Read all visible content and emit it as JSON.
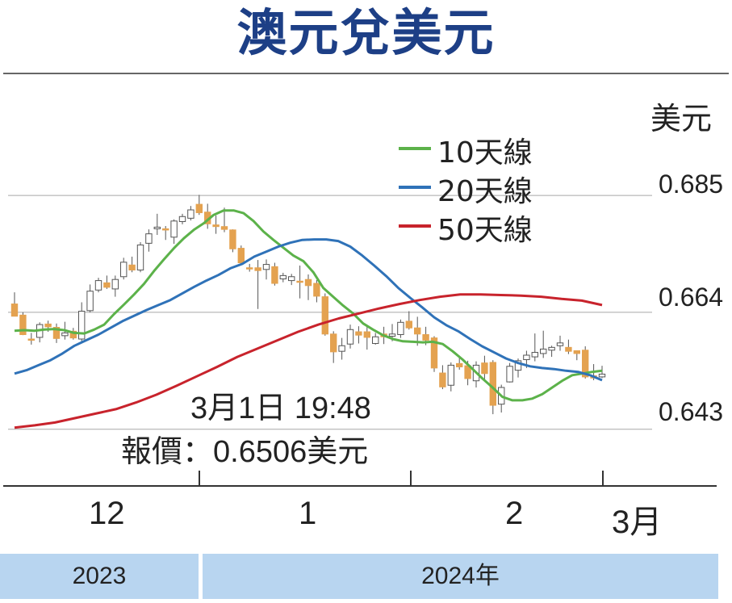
{
  "title": "澳元兌美元",
  "chart_data": {
    "type": "candlestick",
    "y_unit": "美元",
    "ylim": [
      0.636,
      0.694
    ],
    "y_ticks": [
      {
        "value": 0.685,
        "label": "0.685"
      },
      {
        "value": 0.664,
        "label": "0.664"
      },
      {
        "value": 0.643,
        "label": "0.643"
      }
    ],
    "x_labels": [
      "12",
      "1",
      "2",
      "3月"
    ],
    "year_labels": [
      "2023",
      "2024年"
    ],
    "annotation": {
      "time": "3月1日  19:48",
      "price": "報價：0.6506美元"
    },
    "colors": {
      "up": "#ffffff",
      "down": "#e4a250",
      "ma10": "#5cb24a",
      "ma20": "#2f72b8",
      "ma50": "#c8232c"
    },
    "series": [
      {
        "name": "10天線",
        "color": "#5cb24a",
        "values": [
          0.6607,
          0.6608,
          0.6607,
          0.6609,
          0.661,
          0.6608,
          0.6603,
          0.6602,
          0.6609,
          0.6618,
          0.6637,
          0.6654,
          0.6672,
          0.6691,
          0.6714,
          0.6735,
          0.6755,
          0.6773,
          0.6788,
          0.68,
          0.6815,
          0.6823,
          0.6823,
          0.6818,
          0.6804,
          0.6785,
          0.677,
          0.6756,
          0.6742,
          0.6732,
          0.6712,
          0.6684,
          0.6668,
          0.6652,
          0.6638,
          0.662,
          0.6609,
          0.6599,
          0.6592,
          0.6588,
          0.6587,
          0.6586,
          0.6587,
          0.6583,
          0.657,
          0.6555,
          0.6538,
          0.6521,
          0.6505,
          0.6488,
          0.6482,
          0.6482,
          0.6485,
          0.6493,
          0.6505,
          0.6517,
          0.6527,
          0.653,
          0.6533,
          0.6535
        ]
      },
      {
        "name": "20天線",
        "color": "#2f72b8",
        "values": [
          0.653,
          0.6536,
          0.6545,
          0.6554,
          0.6566,
          0.658,
          0.659,
          0.66,
          0.6612,
          0.6624,
          0.6634,
          0.6644,
          0.6653,
          0.6662,
          0.6674,
          0.6686,
          0.6697,
          0.6707,
          0.6719,
          0.6727,
          0.674,
          0.6749,
          0.6758,
          0.6765,
          0.677,
          0.6771,
          0.6771,
          0.6768,
          0.6758,
          0.6742,
          0.6724,
          0.6705,
          0.6684,
          0.6666,
          0.6649,
          0.6631,
          0.6617,
          0.6606,
          0.6592,
          0.6579,
          0.6568,
          0.6557,
          0.6549,
          0.6543,
          0.654,
          0.6538,
          0.6535,
          0.6533,
          0.6527,
          0.6518
        ]
      },
      {
        "name": "50天線",
        "color": "#c8232c",
        "values": [
          0.6433,
          0.6437,
          0.6442,
          0.645,
          0.6458,
          0.6466,
          0.6478,
          0.6492,
          0.6508,
          0.6525,
          0.6542,
          0.656,
          0.6575,
          0.659,
          0.6605,
          0.6618,
          0.6629,
          0.6638,
          0.6647,
          0.6655,
          0.6662,
          0.6668,
          0.6672,
          0.6672,
          0.6671,
          0.667,
          0.6668,
          0.6664,
          0.6661,
          0.6653
        ]
      }
    ],
    "candles": [
      [
        0.6655,
        0.6633,
        0.6676,
        0.6633
      ],
      [
        0.6635,
        0.66,
        0.664,
        0.6599
      ],
      [
        0.6592,
        0.659,
        0.6603,
        0.6582
      ],
      [
        0.6595,
        0.6618,
        0.6622,
        0.6586
      ],
      [
        0.6619,
        0.6614,
        0.6625,
        0.6605
      ],
      [
        0.6613,
        0.6593,
        0.662,
        0.6585
      ],
      [
        0.6598,
        0.6603,
        0.6623,
        0.6591
      ],
      [
        0.6606,
        0.6594,
        0.6612,
        0.6591
      ],
      [
        0.6592,
        0.6642,
        0.6658,
        0.6587
      ],
      [
        0.6643,
        0.6678,
        0.669,
        0.664
      ],
      [
        0.668,
        0.6697,
        0.6702,
        0.6676
      ],
      [
        0.6693,
        0.6685,
        0.6706,
        0.6682
      ],
      [
        0.6682,
        0.6699,
        0.6706,
        0.6668
      ],
      [
        0.6704,
        0.673,
        0.6738,
        0.6699
      ],
      [
        0.6725,
        0.6716,
        0.674,
        0.6712
      ],
      [
        0.6716,
        0.6761,
        0.6766,
        0.6712
      ],
      [
        0.6764,
        0.6781,
        0.6789,
        0.6749
      ],
      [
        0.679,
        0.6793,
        0.6817,
        0.6779
      ],
      [
        0.679,
        0.6788,
        0.6795,
        0.677
      ],
      [
        0.6775,
        0.6804,
        0.6807,
        0.6763
      ],
      [
        0.6803,
        0.6812,
        0.6817,
        0.6798
      ],
      [
        0.6809,
        0.6824,
        0.6831,
        0.6805
      ],
      [
        0.6834,
        0.6819,
        0.6851,
        0.6815
      ],
      [
        0.682,
        0.6799,
        0.6835,
        0.679
      ],
      [
        0.6797,
        0.6794,
        0.6814,
        0.6781
      ],
      [
        0.6794,
        0.6789,
        0.6828,
        0.6784
      ],
      [
        0.6788,
        0.6754,
        0.6789,
        0.6748
      ],
      [
        0.6755,
        0.6729,
        0.676,
        0.6725
      ],
      [
        0.672,
        0.6718,
        0.6727,
        0.6713
      ],
      [
        0.672,
        0.6715,
        0.6734,
        0.6646
      ],
      [
        0.6717,
        0.6726,
        0.6735,
        0.6699
      ],
      [
        0.6722,
        0.6692,
        0.6729,
        0.6688
      ],
      [
        0.67,
        0.6706,
        0.6711,
        0.6694
      ],
      [
        0.6697,
        0.6704,
        0.6709,
        0.6689
      ],
      [
        0.6696,
        0.6695,
        0.6724,
        0.6665
      ],
      [
        0.6699,
        0.6688,
        0.6708,
        0.6662
      ],
      [
        0.6692,
        0.6669,
        0.6698,
        0.6658
      ],
      [
        0.6668,
        0.6601,
        0.6674,
        0.6598
      ],
      [
        0.6601,
        0.6569,
        0.6606,
        0.6549
      ],
      [
        0.657,
        0.658,
        0.6594,
        0.6555
      ],
      [
        0.6583,
        0.6609,
        0.6618,
        0.6575
      ],
      [
        0.6605,
        0.6599,
        0.6615,
        0.6584
      ],
      [
        0.6605,
        0.6595,
        0.6616,
        0.6573
      ],
      [
        0.6584,
        0.6596,
        0.6603,
        0.6582
      ],
      [
        0.6601,
        0.6596,
        0.6614,
        0.6583
      ],
      [
        0.6597,
        0.6601,
        0.6619,
        0.6588
      ],
      [
        0.66,
        0.6622,
        0.6627,
        0.6594
      ],
      [
        0.6624,
        0.6612,
        0.6642,
        0.6609
      ],
      [
        0.6612,
        0.6601,
        0.6632,
        0.658
      ],
      [
        0.66,
        0.659,
        0.6614,
        0.6581
      ],
      [
        0.6594,
        0.654,
        0.6597,
        0.6533
      ],
      [
        0.6531,
        0.6506,
        0.6545,
        0.6502
      ],
      [
        0.6509,
        0.6545,
        0.655,
        0.6498
      ],
      [
        0.6548,
        0.6542,
        0.6562,
        0.6537
      ],
      [
        0.6544,
        0.6521,
        0.6553,
        0.6509
      ],
      [
        0.6517,
        0.6545,
        0.6552,
        0.6505
      ],
      [
        0.6549,
        0.653,
        0.6562,
        0.652
      ],
      [
        0.655,
        0.6473,
        0.6554,
        0.6457
      ],
      [
        0.6475,
        0.6505,
        0.651,
        0.646
      ],
      [
        0.6515,
        0.6543,
        0.6549,
        0.6514
      ],
      [
        0.6536,
        0.6553,
        0.6557,
        0.6523
      ],
      [
        0.6555,
        0.6563,
        0.6571,
        0.654
      ],
      [
        0.656,
        0.6568,
        0.6602,
        0.6552
      ],
      [
        0.6566,
        0.6574,
        0.6607,
        0.6558
      ],
      [
        0.6572,
        0.6577,
        0.658,
        0.656
      ],
      [
        0.658,
        0.6585,
        0.6598,
        0.6571
      ],
      [
        0.6577,
        0.657,
        0.6591,
        0.6565
      ],
      [
        0.6571,
        0.6566,
        0.6571,
        0.6554
      ],
      [
        0.6572,
        0.6524,
        0.6579,
        0.6521
      ],
      [
        0.6526,
        0.6522,
        0.6547,
        0.6518
      ],
      [
        0.6524,
        0.6529,
        0.6544,
        0.6522
      ]
    ]
  }
}
